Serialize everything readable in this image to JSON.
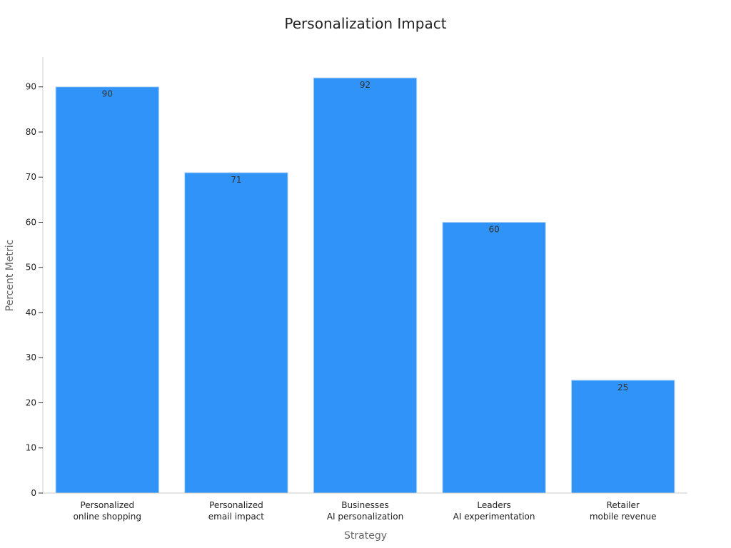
{
  "chart_data": {
    "type": "bar",
    "title": "Personalization Impact",
    "xlabel": "Strategy",
    "ylabel": "Percent Metric",
    "categories": [
      [
        "Personalized",
        "online shopping"
      ],
      [
        "Personalized",
        "email impact"
      ],
      [
        "Businesses",
        "AI personalization"
      ],
      [
        "Leaders",
        "AI experimentation"
      ],
      [
        "Retailer",
        "mobile revenue"
      ]
    ],
    "values": [
      90,
      71,
      92,
      60,
      25
    ],
    "ylim": [
      0,
      96.6
    ],
    "yticks": [
      0,
      10,
      20,
      30,
      40,
      50,
      60,
      70,
      80,
      90
    ],
    "grid": false,
    "legend": "none",
    "bar_color": "#2f93f8"
  }
}
